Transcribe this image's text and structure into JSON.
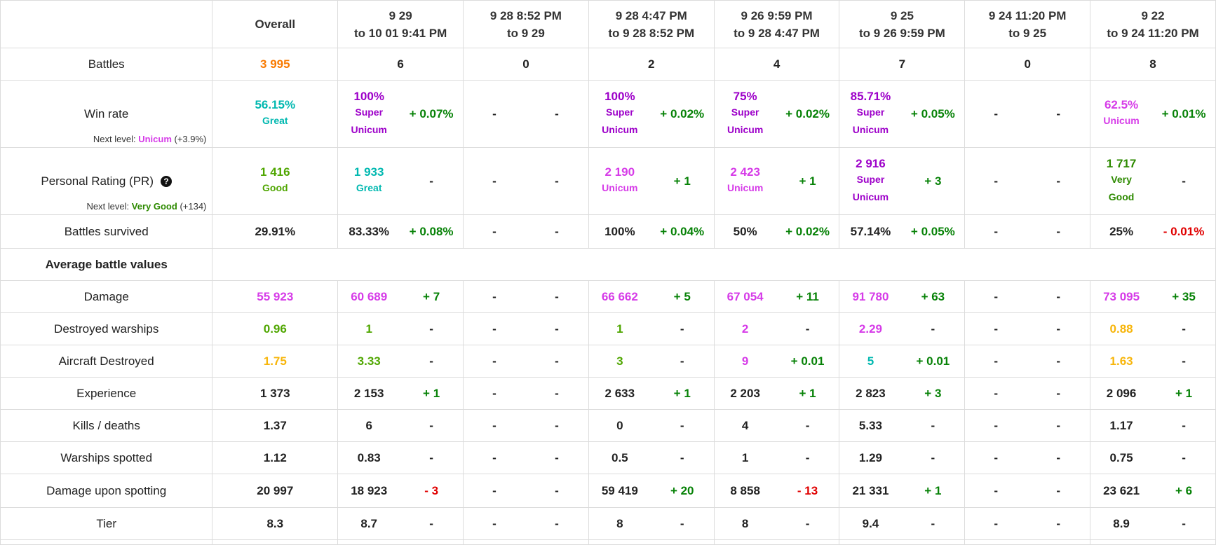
{
  "colors": {
    "orange": "#f97a00",
    "teal": "#00b8b0",
    "purple": "#9d00c9",
    "magenta": "#d63be8",
    "green": "#4fa600",
    "dark_green": "#2d8a00",
    "yellow": "#f7b50a",
    "positive": "#078207",
    "negative": "#e00000"
  },
  "header": {
    "overall": "Overall",
    "periods": [
      {
        "line1": "9 29",
        "line2": "to 10 01 9:41 PM"
      },
      {
        "line1": "9 28 8:52 PM",
        "line2": "to 9 29"
      },
      {
        "line1": "9 28 4:47 PM",
        "line2": "to 9 28 8:52 PM"
      },
      {
        "line1": "9 26 9:59 PM",
        "line2": "to 9 28 4:47 PM"
      },
      {
        "line1": "9 25",
        "line2": "to 9 26 9:59 PM"
      },
      {
        "line1": "9 24 11:20 PM",
        "line2": "to 9 25"
      },
      {
        "line1": "9 22",
        "line2": "to 9 24 11:20 PM"
      }
    ]
  },
  "battles": {
    "label": "Battles",
    "overall": "3 995",
    "periods": [
      "6",
      "0",
      "2",
      "4",
      "7",
      "0",
      "8"
    ]
  },
  "win_rate": {
    "label": "Win rate",
    "next_prefix": "Next level:",
    "next_name": "Unicum",
    "next_gap": "(+3.9%)",
    "overall": {
      "value": "56.15%",
      "rating": "Great"
    },
    "periods": [
      {
        "value": "100%",
        "r1": "Super",
        "r2": "Unicum",
        "delta": "+ 0.07%"
      },
      {
        "value": "-",
        "r1": "",
        "r2": "",
        "delta": "-"
      },
      {
        "value": "100%",
        "r1": "Super",
        "r2": "Unicum",
        "delta": "+ 0.02%"
      },
      {
        "value": "75%",
        "r1": "Super",
        "r2": "Unicum",
        "delta": "+ 0.02%"
      },
      {
        "value": "85.71%",
        "r1": "Super",
        "r2": "Unicum",
        "delta": "+ 0.05%"
      },
      {
        "value": "-",
        "r1": "",
        "r2": "",
        "delta": "-"
      },
      {
        "value": "62.5%",
        "r1": "Unicum",
        "r2": "",
        "delta": "+ 0.01%"
      }
    ]
  },
  "pr": {
    "label": "Personal Rating (PR)",
    "help_icon": "question-circle-icon",
    "next_prefix": "Next level:",
    "next_name": "Very Good",
    "next_gap": "(+134)",
    "overall": {
      "value": "1 416",
      "rating": "Good"
    },
    "periods": [
      {
        "value": "1 933",
        "r1": "Great",
        "r2": "",
        "delta": "-"
      },
      {
        "value": "-",
        "r1": "",
        "r2": "",
        "delta": "-"
      },
      {
        "value": "2 190",
        "r1": "Unicum",
        "r2": "",
        "delta": "+ 1"
      },
      {
        "value": "2 423",
        "r1": "Unicum",
        "r2": "",
        "delta": "+ 1"
      },
      {
        "value": "2 916",
        "r1": "Super",
        "r2": "Unicum",
        "delta": "+ 3"
      },
      {
        "value": "-",
        "r1": "",
        "r2": "",
        "delta": "-"
      },
      {
        "value": "1 717",
        "r1": "Very",
        "r2": "Good",
        "delta": "-"
      }
    ]
  },
  "survived": {
    "label": "Battles survived",
    "overall": "29.91%",
    "periods": [
      {
        "v": "83.33%",
        "d": "+ 0.08%"
      },
      {
        "v": "-",
        "d": "-"
      },
      {
        "v": "100%",
        "d": "+ 0.04%"
      },
      {
        "v": "50%",
        "d": "+ 0.02%"
      },
      {
        "v": "57.14%",
        "d": "+ 0.05%"
      },
      {
        "v": "-",
        "d": "-"
      },
      {
        "v": "25%",
        "d": "- 0.01%"
      }
    ]
  },
  "section": {
    "average_title": "Average battle values"
  },
  "averages": [
    {
      "label": "Damage",
      "overall": "55 923",
      "periods": [
        {
          "v": "60 689",
          "d": "+ 7"
        },
        {
          "v": "-",
          "d": "-"
        },
        {
          "v": "66 662",
          "d": "+ 5"
        },
        {
          "v": "67 054",
          "d": "+ 11"
        },
        {
          "v": "91 780",
          "d": "+ 63"
        },
        {
          "v": "-",
          "d": "-"
        },
        {
          "v": "73 095",
          "d": "+ 35"
        }
      ]
    },
    {
      "label": "Destroyed warships",
      "overall": "0.96",
      "periods": [
        {
          "v": "1",
          "d": "-"
        },
        {
          "v": "-",
          "d": "-"
        },
        {
          "v": "1",
          "d": "-"
        },
        {
          "v": "2",
          "d": "-"
        },
        {
          "v": "2.29",
          "d": "-"
        },
        {
          "v": "-",
          "d": "-"
        },
        {
          "v": "0.88",
          "d": "-"
        }
      ]
    },
    {
      "label": "Aircraft Destroyed",
      "overall": "1.75",
      "periods": [
        {
          "v": "3.33",
          "d": "-"
        },
        {
          "v": "-",
          "d": "-"
        },
        {
          "v": "3",
          "d": "-"
        },
        {
          "v": "9",
          "d": "+ 0.01"
        },
        {
          "v": "5",
          "d": "+ 0.01"
        },
        {
          "v": "-",
          "d": "-"
        },
        {
          "v": "1.63",
          "d": "-"
        }
      ]
    },
    {
      "label": "Experience",
      "overall": "1 373",
      "periods": [
        {
          "v": "2 153",
          "d": "+ 1"
        },
        {
          "v": "-",
          "d": "-"
        },
        {
          "v": "2 633",
          "d": "+ 1"
        },
        {
          "v": "2 203",
          "d": "+ 1"
        },
        {
          "v": "2 823",
          "d": "+ 3"
        },
        {
          "v": "-",
          "d": "-"
        },
        {
          "v": "2 096",
          "d": "+ 1"
        }
      ]
    },
    {
      "label": "Kills / deaths",
      "overall": "1.37",
      "periods": [
        {
          "v": "6",
          "d": "-"
        },
        {
          "v": "-",
          "d": "-"
        },
        {
          "v": "0",
          "d": "-"
        },
        {
          "v": "4",
          "d": "-"
        },
        {
          "v": "5.33",
          "d": "-"
        },
        {
          "v": "-",
          "d": "-"
        },
        {
          "v": "1.17",
          "d": "-"
        }
      ]
    },
    {
      "label": "Warships spotted",
      "overall": "1.12",
      "periods": [
        {
          "v": "0.83",
          "d": "-"
        },
        {
          "v": "-",
          "d": "-"
        },
        {
          "v": "0.5",
          "d": "-"
        },
        {
          "v": "1",
          "d": "-"
        },
        {
          "v": "1.29",
          "d": "-"
        },
        {
          "v": "-",
          "d": "-"
        },
        {
          "v": "0.75",
          "d": "-"
        }
      ]
    },
    {
      "label": "Damage upon spotting",
      "overall": "20 997",
      "periods": [
        {
          "v": "18 923",
          "d": "- 3"
        },
        {
          "v": "-",
          "d": "-"
        },
        {
          "v": "59 419",
          "d": "+ 20"
        },
        {
          "v": "8 858",
          "d": "- 13"
        },
        {
          "v": "21 331",
          "d": "+ 1"
        },
        {
          "v": "-",
          "d": "-"
        },
        {
          "v": "23 621",
          "d": "+ 6"
        }
      ]
    },
    {
      "label": "Tier",
      "overall": "8.3",
      "periods": [
        {
          "v": "8.7",
          "d": "-"
        },
        {
          "v": "-",
          "d": "-"
        },
        {
          "v": "8",
          "d": "-"
        },
        {
          "v": "8",
          "d": "-"
        },
        {
          "v": "9.4",
          "d": "-"
        },
        {
          "v": "-",
          "d": "-"
        },
        {
          "v": "8.9",
          "d": "-"
        }
      ]
    }
  ]
}
